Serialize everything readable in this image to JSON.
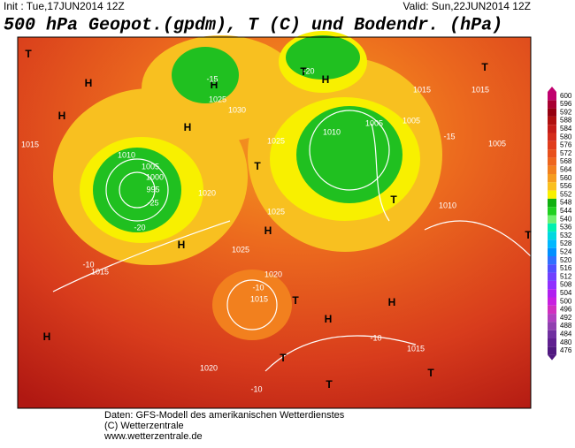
{
  "header": {
    "init": "Init : Tue,17JUN2014 12Z",
    "valid": "Valid: Sun,22JUN2014 12Z",
    "title": "500 hPa Geopot.(gpdm), T (C) und Bodendr. (hPa)"
  },
  "legend": {
    "levels": [
      600,
      596,
      592,
      588,
      584,
      580,
      576,
      572,
      568,
      564,
      560,
      556,
      552,
      548,
      544,
      540,
      536,
      532,
      528,
      524,
      520,
      516,
      512,
      508,
      504,
      500,
      496,
      492,
      488,
      484,
      480,
      476
    ],
    "colors": [
      "#c0006e",
      "#a80030",
      "#960010",
      "#b01010",
      "#c41c18",
      "#d42c1c",
      "#e03c1c",
      "#e8501c",
      "#ee661e",
      "#f2801e",
      "#f69c1e",
      "#fac01e",
      "#f8f000",
      "#10b010",
      "#20d020",
      "#70f070",
      "#00f0b0",
      "#00d8e0",
      "#00b8ff",
      "#0090ff",
      "#3070ff",
      "#5050ff",
      "#7040ff",
      "#9030ff",
      "#b020f0",
      "#c820e0",
      "#d030c0",
      "#b040c0",
      "#9040b0",
      "#7030a0",
      "#602090",
      "#501880"
    ]
  },
  "map": {
    "labels": [
      "T",
      "H",
      "1015",
      "1010",
      "1005",
      "1000",
      "995",
      "H",
      "H",
      "1025",
      "1030",
      "H",
      "1025",
      "T",
      "T",
      "H",
      "1010",
      "1005",
      "1005",
      "1015",
      "1015",
      "T",
      "T",
      "H",
      "1025",
      "H",
      "1020",
      "1025",
      "1015",
      "1020",
      "1015",
      "T",
      "H",
      "H",
      "H",
      "T",
      "T",
      "T",
      "1015",
      "1020",
      "1010",
      "1005",
      "T",
      "-15",
      "-20",
      "-25",
      "-20",
      "-15",
      "-10",
      "-10",
      "-10",
      "-10"
    ]
  },
  "footer": {
    "lines": [
      "Daten: GFS-Modell des amerikanischen Wetterdienstes",
      "(C) Wetterzentrale",
      "www.wetterzentrale.de"
    ]
  }
}
